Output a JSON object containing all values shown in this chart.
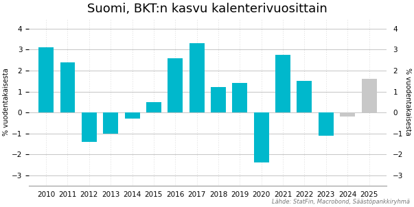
{
  "title": "Suomi, BKT:n kasvu kalenterivuosittain",
  "years": [
    2010,
    2011,
    2012,
    2013,
    2014,
    2015,
    2016,
    2017,
    2018,
    2019,
    2020,
    2021,
    2022,
    2023,
    2024,
    2025
  ],
  "values": [
    3.1,
    2.4,
    -1.4,
    -1.0,
    -0.3,
    0.5,
    2.6,
    3.3,
    1.2,
    1.4,
    -2.4,
    2.75,
    1.5,
    -1.1,
    -0.2,
    1.6
  ],
  "bar_colors": [
    "#00B8CC",
    "#00B8CC",
    "#00B8CC",
    "#00B8CC",
    "#00B8CC",
    "#00B8CC",
    "#00B8CC",
    "#00B8CC",
    "#00B8CC",
    "#00B8CC",
    "#00B8CC",
    "#00B8CC",
    "#00B8CC",
    "#00B8CC",
    "#C8C8C8",
    "#C8C8C8"
  ],
  "ylabel_left": "% vuodentakaisesta",
  "ylabel_right": "% vuodentakaisesta",
  "ylim": [
    -3.5,
    4.5
  ],
  "yticks": [
    -3,
    -2,
    -1,
    0,
    1,
    2,
    3,
    4
  ],
  "source_text": "Lähde: StatFin, Macrobond, Säästöpankkiryhmä",
  "background_color": "#ffffff",
  "grid_color": "#bbbbbb",
  "title_fontsize": 13,
  "label_fontsize": 7,
  "tick_fontsize": 7.5
}
